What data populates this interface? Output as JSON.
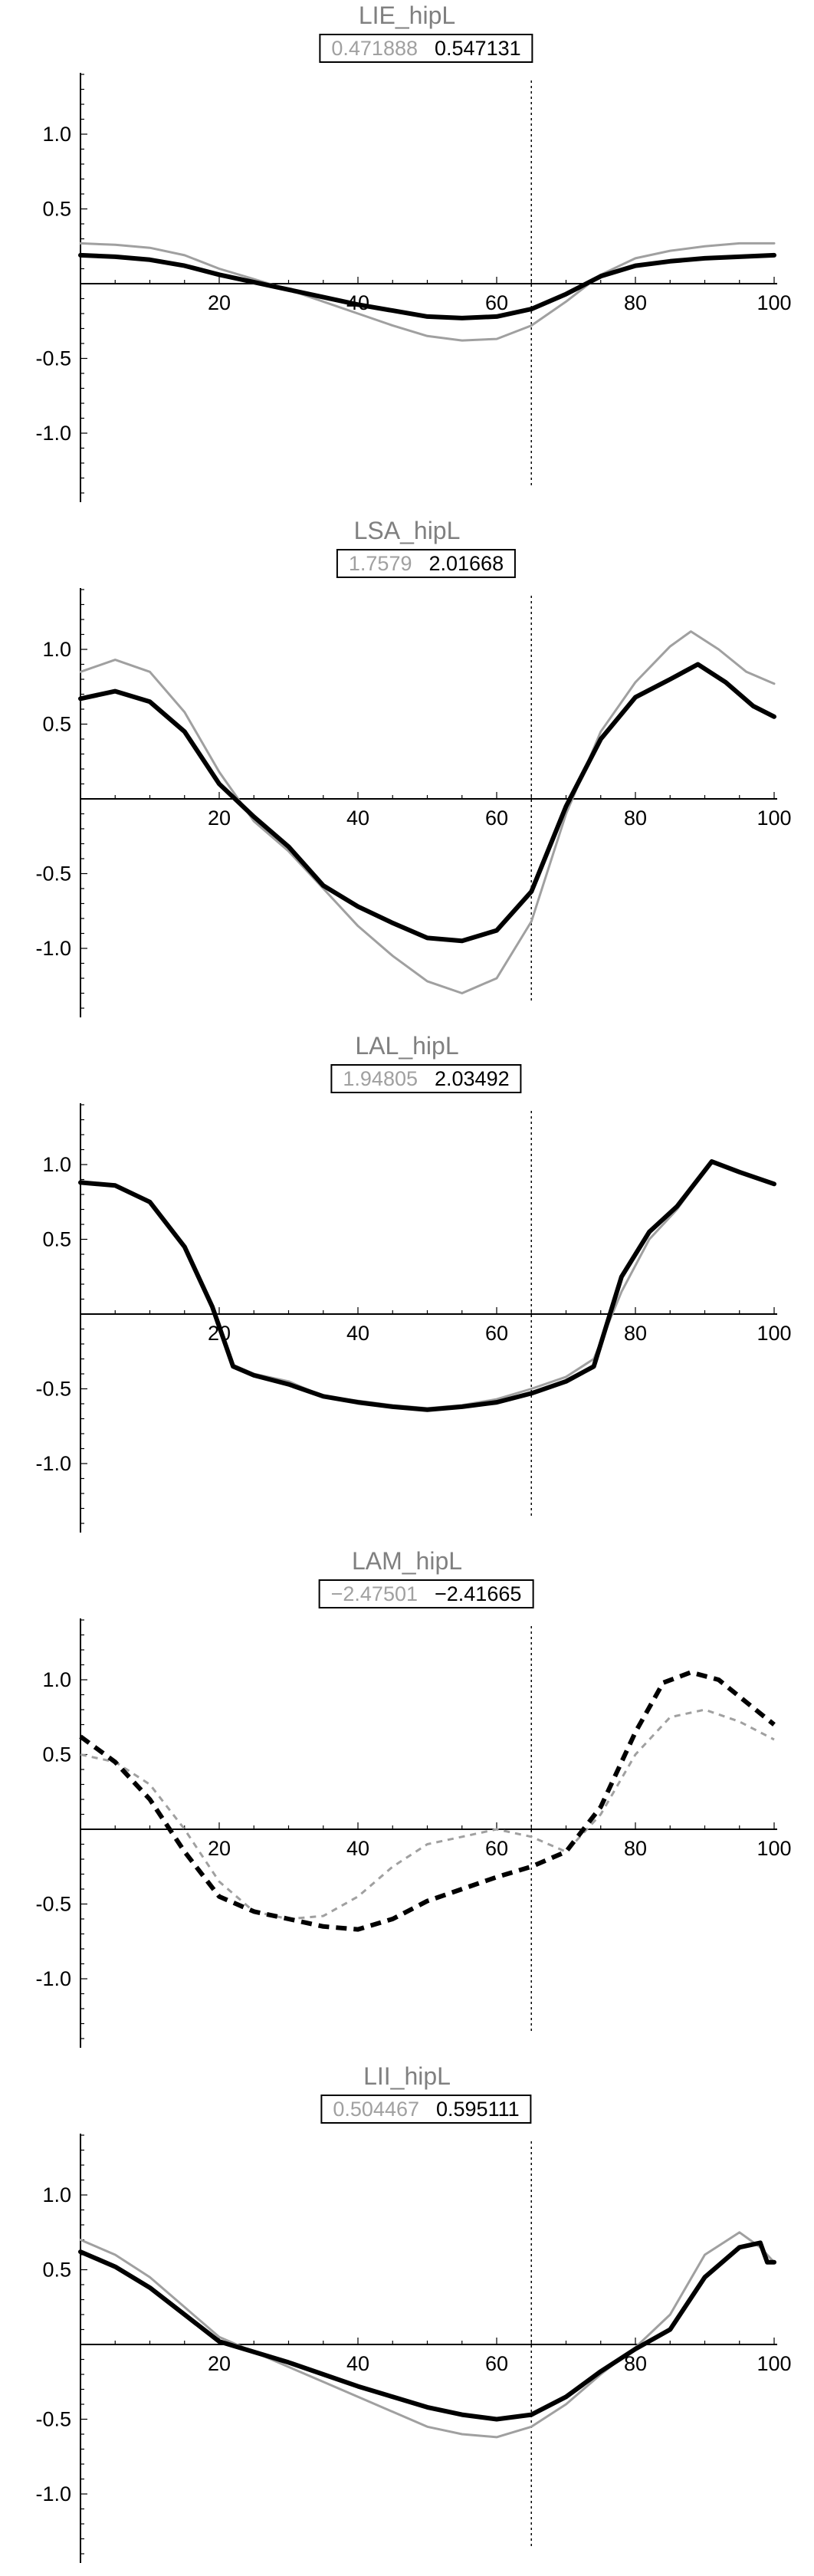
{
  "chart_data": [
    {
      "type": "line",
      "title": "LIE_hipL",
      "legend_values": {
        "reference": "0.471888",
        "current": "0.547131"
      },
      "xlim": [
        0,
        100
      ],
      "ylim": [
        -1.45,
        1.45
      ],
      "xticks": [
        "20",
        "40",
        "60",
        "80",
        "100"
      ],
      "yticks": [
        "1.0",
        "0.5",
        "-0.5",
        "-1.0"
      ],
      "vline_x": 65,
      "series": [
        {
          "role": "reference",
          "color": "#a0a0a0",
          "dashed": false,
          "x": [
            0,
            5,
            10,
            15,
            20,
            25,
            30,
            35,
            40,
            45,
            50,
            55,
            60,
            65,
            70,
            75,
            80,
            85,
            90,
            95,
            100
          ],
          "y": [
            0.27,
            0.26,
            0.24,
            0.19,
            0.1,
            0.03,
            -0.04,
            -0.12,
            -0.2,
            -0.28,
            -0.35,
            -0.38,
            -0.37,
            -0.28,
            -0.12,
            0.06,
            0.17,
            0.22,
            0.25,
            0.27,
            0.27
          ]
        },
        {
          "role": "current",
          "color": "#000000",
          "dashed": false,
          "x": [
            0,
            5,
            10,
            15,
            20,
            25,
            30,
            35,
            40,
            45,
            50,
            55,
            60,
            65,
            70,
            75,
            80,
            85,
            90,
            95,
            100
          ],
          "y": [
            0.19,
            0.18,
            0.16,
            0.12,
            0.06,
            0.01,
            -0.04,
            -0.09,
            -0.14,
            -0.18,
            -0.22,
            -0.23,
            -0.22,
            -0.17,
            -0.07,
            0.05,
            0.12,
            0.15,
            0.17,
            0.18,
            0.19
          ]
        }
      ]
    },
    {
      "type": "line",
      "title": "LSA_hipL",
      "legend_values": {
        "reference": "1.7579",
        "current": "2.01668"
      },
      "xlim": [
        0,
        100
      ],
      "ylim": [
        -1.45,
        1.45
      ],
      "xticks": [
        "20",
        "40",
        "60",
        "80",
        "100"
      ],
      "yticks": [
        "1.0",
        "0.5",
        "-0.5",
        "-1.0"
      ],
      "vline_x": 65,
      "series": [
        {
          "role": "reference",
          "color": "#a0a0a0",
          "dashed": false,
          "x": [
            0,
            5,
            10,
            15,
            20,
            25,
            30,
            35,
            40,
            45,
            50,
            55,
            60,
            65,
            70,
            75,
            80,
            85,
            88,
            92,
            96,
            100
          ],
          "y": [
            0.85,
            0.93,
            0.85,
            0.58,
            0.18,
            -0.15,
            -0.35,
            -0.6,
            -0.85,
            -1.05,
            -1.22,
            -1.3,
            -1.2,
            -0.82,
            -0.1,
            0.45,
            0.78,
            1.02,
            1.12,
            1.0,
            0.85,
            0.77
          ]
        },
        {
          "role": "current",
          "color": "#000000",
          "dashed": false,
          "x": [
            0,
            5,
            10,
            15,
            20,
            25,
            30,
            35,
            40,
            45,
            50,
            55,
            60,
            65,
            70,
            75,
            80,
            85,
            89,
            93,
            97,
            100
          ],
          "y": [
            0.67,
            0.72,
            0.65,
            0.45,
            0.1,
            -0.12,
            -0.32,
            -0.58,
            -0.72,
            -0.83,
            -0.93,
            -0.95,
            -0.88,
            -0.62,
            -0.05,
            0.4,
            0.68,
            0.8,
            0.9,
            0.78,
            0.62,
            0.55
          ]
        }
      ]
    },
    {
      "type": "line",
      "title": "LAL_hipL",
      "legend_values": {
        "reference": "1.94805",
        "current": "2.03492"
      },
      "xlim": [
        0,
        100
      ],
      "ylim": [
        -1.45,
        1.45
      ],
      "xticks": [
        "20",
        "40",
        "60",
        "80",
        "100"
      ],
      "yticks": [
        "1.0",
        "0.5",
        "-0.5",
        "-1.0"
      ],
      "vline_x": 65,
      "series": [
        {
          "role": "reference",
          "color": "#a0a0a0",
          "dashed": false,
          "x": [
            0,
            5,
            10,
            15,
            19,
            22,
            25,
            30,
            35,
            40,
            45,
            50,
            55,
            60,
            65,
            70,
            74,
            78,
            82,
            86,
            91,
            95,
            100
          ],
          "y": [
            0.88,
            0.86,
            0.75,
            0.45,
            0.05,
            -0.34,
            -0.4,
            -0.45,
            -0.55,
            -0.58,
            -0.61,
            -0.63,
            -0.61,
            -0.57,
            -0.5,
            -0.42,
            -0.3,
            0.15,
            0.5,
            0.7,
            1.02,
            0.95,
            0.87
          ]
        },
        {
          "role": "current",
          "color": "#000000",
          "dashed": false,
          "x": [
            0,
            5,
            10,
            15,
            19,
            22,
            25,
            30,
            35,
            40,
            45,
            50,
            55,
            60,
            65,
            70,
            74,
            78,
            82,
            86,
            91,
            95,
            100
          ],
          "y": [
            0.88,
            0.86,
            0.75,
            0.45,
            0.05,
            -0.35,
            -0.41,
            -0.47,
            -0.55,
            -0.59,
            -0.62,
            -0.64,
            -0.62,
            -0.59,
            -0.53,
            -0.45,
            -0.35,
            0.25,
            0.55,
            0.72,
            1.02,
            0.95,
            0.87
          ]
        }
      ]
    },
    {
      "type": "line",
      "title": "LAM_hipL",
      "legend_values": {
        "reference": "−2.47501",
        "current": "−2.41665"
      },
      "xlim": [
        0,
        100
      ],
      "ylim": [
        -1.45,
        1.45
      ],
      "xticks": [
        "20",
        "40",
        "60",
        "80",
        "100"
      ],
      "yticks": [
        "1.0",
        "0.5",
        "-0.5",
        "-1.0"
      ],
      "vline_x": 65,
      "series": [
        {
          "role": "reference",
          "color": "#a0a0a0",
          "dashed": true,
          "x": [
            0,
            5,
            10,
            15,
            20,
            25,
            30,
            35,
            40,
            45,
            50,
            55,
            60,
            65,
            70,
            75,
            80,
            85,
            90,
            95,
            100
          ],
          "y": [
            0.5,
            0.45,
            0.3,
            0.0,
            -0.35,
            -0.55,
            -0.6,
            -0.58,
            -0.45,
            -0.25,
            -0.1,
            -0.05,
            0.0,
            -0.05,
            -0.15,
            0.1,
            0.5,
            0.75,
            0.8,
            0.72,
            0.6
          ]
        },
        {
          "role": "current",
          "color": "#000000",
          "dashed": true,
          "x": [
            0,
            5,
            10,
            15,
            20,
            25,
            30,
            35,
            40,
            45,
            50,
            55,
            60,
            65,
            70,
            75,
            80,
            84,
            88,
            92,
            96,
            100
          ],
          "y": [
            0.62,
            0.45,
            0.2,
            -0.15,
            -0.45,
            -0.55,
            -0.6,
            -0.65,
            -0.67,
            -0.6,
            -0.48,
            -0.4,
            -0.32,
            -0.25,
            -0.15,
            0.15,
            0.65,
            0.98,
            1.05,
            1.0,
            0.85,
            0.7
          ]
        }
      ]
    },
    {
      "type": "line",
      "title": "LII_hipL",
      "legend_values": {
        "reference": "0.504467",
        "current": "0.595111"
      },
      "xlim": [
        0,
        100
      ],
      "ylim": [
        -1.45,
        1.45
      ],
      "xticks": [
        "20",
        "40",
        "60",
        "80",
        "100"
      ],
      "yticks": [
        "1.0",
        "0.5",
        "-0.5",
        "-1.0"
      ],
      "vline_x": 65,
      "series": [
        {
          "role": "reference",
          "color": "#a0a0a0",
          "dashed": false,
          "x": [
            0,
            5,
            10,
            15,
            20,
            25,
            30,
            35,
            40,
            45,
            50,
            55,
            60,
            65,
            70,
            75,
            80,
            85,
            90,
            95,
            98,
            100
          ],
          "y": [
            0.7,
            0.6,
            0.45,
            0.25,
            0.05,
            -0.05,
            -0.15,
            -0.25,
            -0.35,
            -0.45,
            -0.55,
            -0.6,
            -0.62,
            -0.55,
            -0.4,
            -0.2,
            -0.02,
            0.2,
            0.6,
            0.75,
            0.65,
            0.55
          ]
        },
        {
          "role": "current",
          "color": "#000000",
          "dashed": false,
          "x": [
            0,
            5,
            10,
            15,
            20,
            25,
            30,
            35,
            40,
            45,
            50,
            55,
            60,
            65,
            70,
            75,
            80,
            85,
            90,
            95,
            98,
            99,
            100
          ],
          "y": [
            0.62,
            0.52,
            0.38,
            0.2,
            0.02,
            -0.05,
            -0.12,
            -0.2,
            -0.28,
            -0.35,
            -0.42,
            -0.47,
            -0.5,
            -0.47,
            -0.35,
            -0.18,
            -0.03,
            0.1,
            0.45,
            0.65,
            0.68,
            0.55,
            0.55
          ]
        }
      ]
    }
  ]
}
